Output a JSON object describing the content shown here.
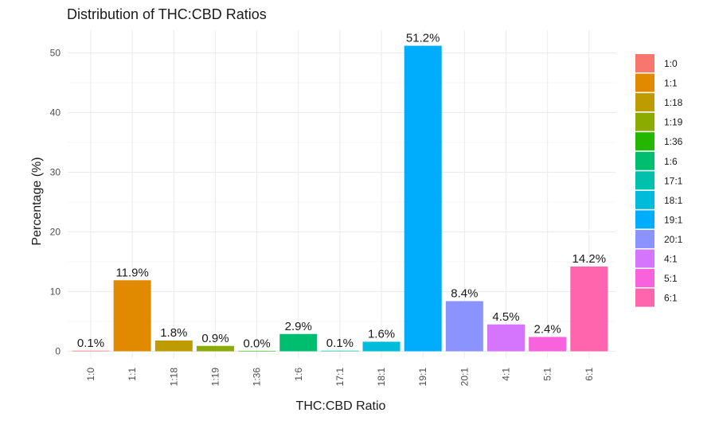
{
  "chart_data": {
    "type": "bar",
    "title": "Distribution of THC:CBD Ratios",
    "xlabel": "THC:CBD Ratio",
    "ylabel": "Percentage (%)",
    "categories": [
      "1:0",
      "1:1",
      "1:18",
      "1:19",
      "1:36",
      "1:6",
      "17:1",
      "18:1",
      "19:1",
      "20:1",
      "4:1",
      "5:1",
      "6:1"
    ],
    "values": [
      0.1,
      11.9,
      1.8,
      0.9,
      0.0,
      2.9,
      0.1,
      1.6,
      51.2,
      8.4,
      4.5,
      2.4,
      14.2
    ],
    "data_labels": [
      "0.1%",
      "11.9%",
      "1.8%",
      "0.9%",
      "0.0%",
      "2.9%",
      "0.1%",
      "1.6%",
      "51.2%",
      "8.4%",
      "4.5%",
      "2.4%",
      "14.2%"
    ],
    "colors": [
      "#F8766D",
      "#E18A00",
      "#BE9C00",
      "#8CAB00",
      "#24B700",
      "#00BE70",
      "#00C1AB",
      "#00BBDA",
      "#00ACFC",
      "#8B93FF",
      "#D575FE",
      "#F962DD",
      "#FF65AC"
    ],
    "yticks": [
      0,
      10,
      20,
      30,
      40,
      50
    ],
    "ylim": [
      0,
      53.8
    ],
    "grid": true,
    "legend": {
      "position": "right",
      "entries": [
        "1:0",
        "1:1",
        "1:18",
        "1:19",
        "1:36",
        "1:6",
        "17:1",
        "18:1",
        "19:1",
        "20:1",
        "4:1",
        "5:1",
        "6:1"
      ]
    }
  }
}
